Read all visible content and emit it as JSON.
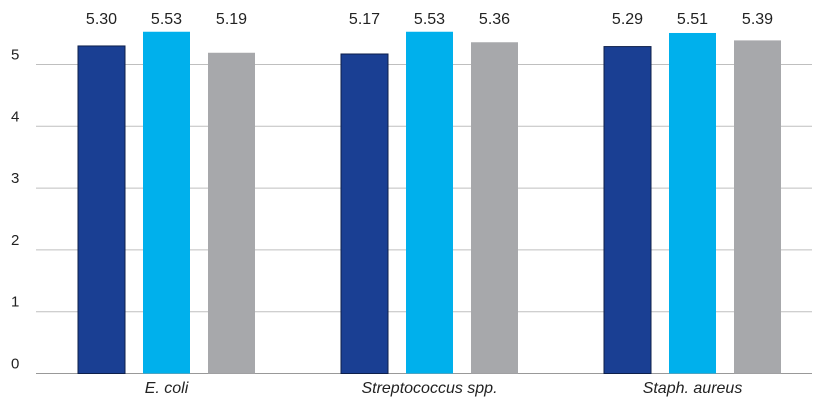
{
  "chart_data": {
    "type": "bar",
    "categories": [
      "E. coli",
      "Streptococcus spp.",
      "Staph. aureus"
    ],
    "series": [
      {
        "values": [
          5.3,
          5.17,
          5.29
        ],
        "color": "#1a3f93",
        "labels": [
          "5.30",
          "5.17",
          "5.29"
        ]
      },
      {
        "values": [
          5.53,
          5.53,
          5.51
        ],
        "color": "#00b0ec",
        "labels": [
          "5.53",
          "5.53",
          "5.51"
        ]
      },
      {
        "values": [
          5.19,
          5.36,
          5.39
        ],
        "color": "#a7a8ab",
        "labels": [
          "5.19",
          "5.36",
          "5.39"
        ]
      }
    ],
    "ylim": [
      0,
      5.6
    ],
    "yticks": [
      0,
      1,
      2,
      3,
      4,
      5
    ],
    "ytick_labels": [
      "0",
      "1",
      "2",
      "3",
      "4",
      "5"
    ],
    "grid": true,
    "legend": "none"
  }
}
